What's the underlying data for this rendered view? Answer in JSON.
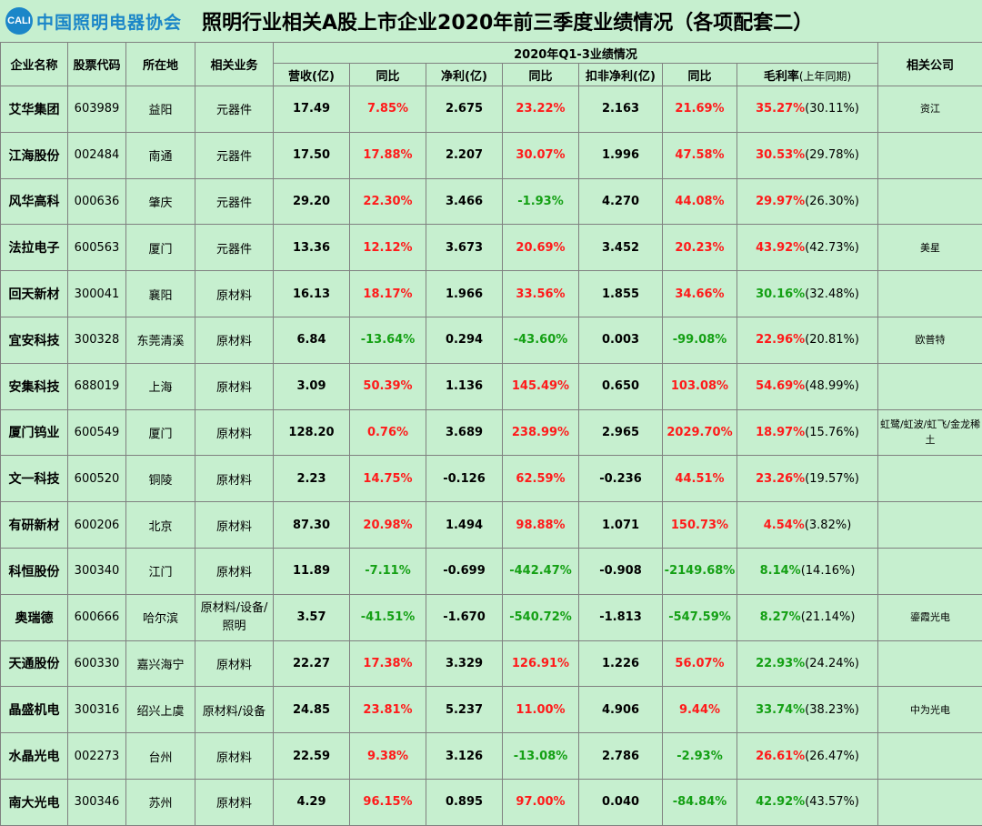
{
  "header": {
    "logo_mark": "CALI",
    "logo_text": "中国照明电器协会",
    "title": "照明行业相关A股上市企业2020年前三季度业绩情况（各项配套二）"
  },
  "columns": {
    "company": "企业名称",
    "code": "股票代码",
    "location": "所在地",
    "business": "相关业务",
    "group": "2020年Q1-3业绩情况",
    "revenue": "营收(亿)",
    "yoy1": "同比",
    "profit": "净利(亿)",
    "yoy2": "同比",
    "deducted": "扣非净利(亿)",
    "yoy3": "同比",
    "margin": "毛利率",
    "margin_note": "(上年同期)",
    "related": "相关公司"
  },
  "colors": {
    "positive": "#ff1a1a",
    "negative": "#14a014"
  },
  "rows": [
    {
      "name": "艾华集团",
      "code": "603989",
      "loc": "益阳",
      "biz": "元器件",
      "rev": "17.49",
      "y1": "7.85%",
      "np": "2.675",
      "y2": "23.22%",
      "dn": "2.163",
      "y3": "21.69%",
      "mg": "35.27%",
      "mgp": "(30.11%)",
      "rel": "资江"
    },
    {
      "name": "江海股份",
      "code": "002484",
      "loc": "南通",
      "biz": "元器件",
      "rev": "17.50",
      "y1": "17.88%",
      "np": "2.207",
      "y2": "30.07%",
      "dn": "1.996",
      "y3": "47.58%",
      "mg": "30.53%",
      "mgp": "(29.78%)",
      "rel": ""
    },
    {
      "name": "风华高科",
      "code": "000636",
      "loc": "肇庆",
      "biz": "元器件",
      "rev": "29.20",
      "y1": "22.30%",
      "np": "3.466",
      "y2": "-1.93%",
      "dn": "4.270",
      "y3": "44.08%",
      "mg": "29.97%",
      "mgp": "(26.30%)",
      "rel": ""
    },
    {
      "name": "法拉电子",
      "code": "600563",
      "loc": "厦门",
      "biz": "元器件",
      "rev": "13.36",
      "y1": "12.12%",
      "np": "3.673",
      "y2": "20.69%",
      "dn": "3.452",
      "y3": "20.23%",
      "mg": "43.92%",
      "mgp": "(42.73%)",
      "rel": "美星"
    },
    {
      "name": "回天新材",
      "code": "300041",
      "loc": "襄阳",
      "biz": "原材料",
      "rev": "16.13",
      "y1": "18.17%",
      "np": "1.966",
      "y2": "33.56%",
      "dn": "1.855",
      "y3": "34.66%",
      "mg": "30.16%",
      "mgp": "(32.48%)",
      "rel": ""
    },
    {
      "name": "宜安科技",
      "code": "300328",
      "loc": "东莞清溪",
      "biz": "原材料",
      "rev": "6.84",
      "y1": "-13.64%",
      "np": "0.294",
      "y2": "-43.60%",
      "dn": "0.003",
      "y3": "-99.08%",
      "mg": "22.96%",
      "mgp": "(20.81%)",
      "rel": "欧普特"
    },
    {
      "name": "安集科技",
      "code": "688019",
      "loc": "上海",
      "biz": "原材料",
      "rev": "3.09",
      "y1": "50.39%",
      "np": "1.136",
      "y2": "145.49%",
      "dn": "0.650",
      "y3": "103.08%",
      "mg": "54.69%",
      "mgp": "(48.99%)",
      "rel": ""
    },
    {
      "name": "厦门钨业",
      "code": "600549",
      "loc": "厦门",
      "biz": "原材料",
      "rev": "128.20",
      "y1": "0.76%",
      "np": "3.689",
      "y2": "238.99%",
      "dn": "2.965",
      "y3": "2029.70%",
      "mg": "18.97%",
      "mgp": "(15.76%)",
      "rel": "虹鹭/虹波/虹飞/金龙稀土"
    },
    {
      "name": "文一科技",
      "code": "600520",
      "loc": "铜陵",
      "biz": "原材料",
      "rev": "2.23",
      "y1": "14.75%",
      "np": "-0.126",
      "y2": "62.59%",
      "dn": "-0.236",
      "y3": "44.51%",
      "mg": "23.26%",
      "mgp": "(19.57%)",
      "rel": ""
    },
    {
      "name": "有研新材",
      "code": "600206",
      "loc": "北京",
      "biz": "原材料",
      "rev": "87.30",
      "y1": "20.98%",
      "np": "1.494",
      "y2": "98.88%",
      "dn": "1.071",
      "y3": "150.73%",
      "mg": "4.54%",
      "mgp": "(3.82%)",
      "rel": ""
    },
    {
      "name": "科恒股份",
      "code": "300340",
      "loc": "江门",
      "biz": "原材料",
      "rev": "11.89",
      "y1": "-7.11%",
      "np": "-0.699",
      "y2": "-442.47%",
      "dn": "-0.908",
      "y3": "-2149.68%",
      "mg": "8.14%",
      "mgp": "(14.16%)",
      "rel": ""
    },
    {
      "name": "奥瑞德",
      "code": "600666",
      "loc": "哈尔滨",
      "biz": "原材料/设备/照明",
      "rev": "3.57",
      "y1": "-41.51%",
      "np": "-1.670",
      "y2": "-540.72%",
      "dn": "-1.813",
      "y3": "-547.59%",
      "mg": "8.27%",
      "mgp": "(21.14%)",
      "rel": "鎏霞光电"
    },
    {
      "name": "天通股份",
      "code": "600330",
      "loc": "嘉兴海宁",
      "biz": "原材料",
      "rev": "22.27",
      "y1": "17.38%",
      "np": "3.329",
      "y2": "126.91%",
      "dn": "1.226",
      "y3": "56.07%",
      "mg": "22.93%",
      "mgp": "(24.24%)",
      "rel": ""
    },
    {
      "name": "晶盛机电",
      "code": "300316",
      "loc": "绍兴上虞",
      "biz": "原材料/设备",
      "rev": "24.85",
      "y1": "23.81%",
      "np": "5.237",
      "y2": "11.00%",
      "dn": "4.906",
      "y3": "9.44%",
      "mg": "33.74%",
      "mgp": "(38.23%)",
      "rel": "中为光电"
    },
    {
      "name": "水晶光电",
      "code": "002273",
      "loc": "台州",
      "biz": "原材料",
      "rev": "22.59",
      "y1": "9.38%",
      "np": "3.126",
      "y2": "-13.08%",
      "dn": "2.786",
      "y3": "-2.93%",
      "mg": "26.61%",
      "mgp": "(26.47%)",
      "rel": ""
    },
    {
      "name": "南大光电",
      "code": "300346",
      "loc": "苏州",
      "biz": "原材料",
      "rev": "4.29",
      "y1": "96.15%",
      "np": "0.895",
      "y2": "97.00%",
      "dn": "0.040",
      "y3": "-84.84%",
      "mg": "42.92%",
      "mgp": "(43.57%)",
      "rel": ""
    }
  ]
}
